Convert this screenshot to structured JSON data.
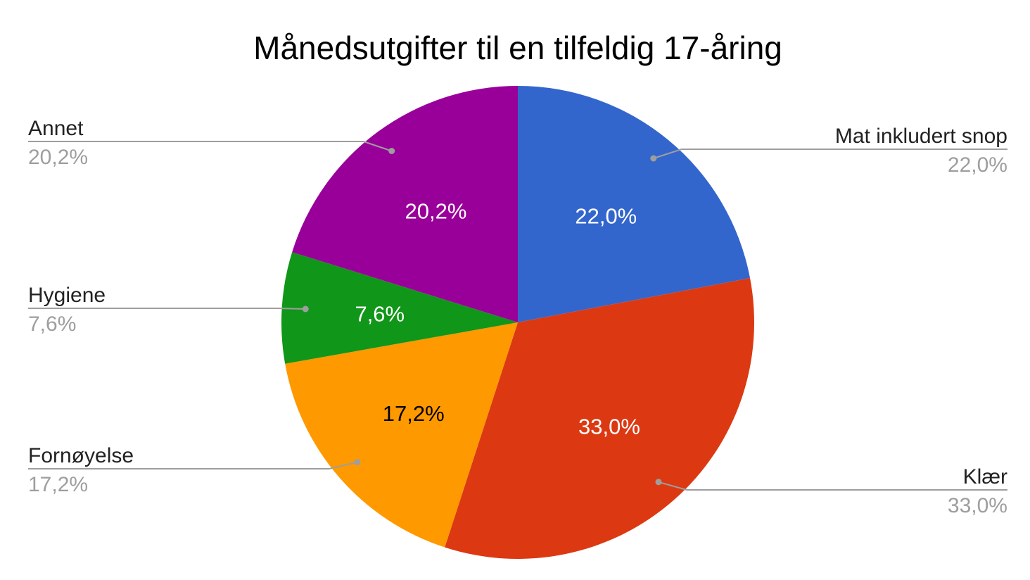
{
  "chart_data": {
    "type": "pie",
    "title": "Månedsutgifter til en tilfeldig 17-åring",
    "slices": [
      {
        "name": "Mat inkludert snop",
        "value": 22.0,
        "label": "22,0%",
        "color": "#3366cc",
        "label_color": "#ffffff"
      },
      {
        "name": "Klær",
        "value": 33.0,
        "label": "33,0%",
        "color": "#dc3912",
        "label_color": "#ffffff"
      },
      {
        "name": "Fornøyelse",
        "value": 17.2,
        "label": "17,2%",
        "color": "#ff9900",
        "label_color": "#000000"
      },
      {
        "name": "Hygiene",
        "value": 7.6,
        "label": "7,6%",
        "color": "#109618",
        "label_color": "#ffffff"
      },
      {
        "name": "Annet",
        "value": 20.2,
        "label": "20,2%",
        "color": "#990099",
        "label_color": "#ffffff"
      }
    ],
    "legend": "labeled leader lines on both sides"
  }
}
